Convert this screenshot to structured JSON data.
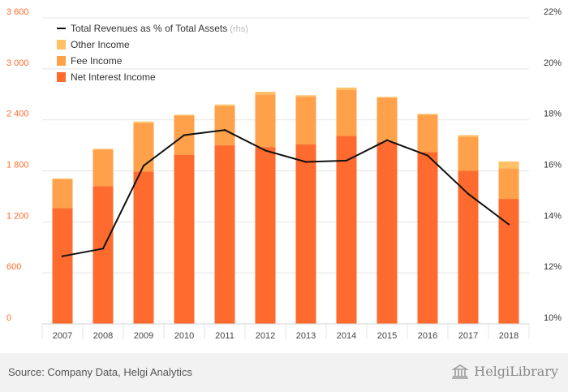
{
  "chart_data": {
    "type": "bar",
    "stacked": true,
    "categories": [
      "2007",
      "2008",
      "2009",
      "2010",
      "2011",
      "2012",
      "2013",
      "2014",
      "2015",
      "2016",
      "2017",
      "2018"
    ],
    "series": [
      {
        "name": "Net Interest Income",
        "color": "#ff6b2e",
        "axis": "left",
        "values": [
          1360,
          1620,
          1790,
          1990,
          2100,
          2080,
          2110,
          2210,
          2140,
          2020,
          1800,
          1470
        ]
      },
      {
        "name": "Fee Income",
        "color": "#ffa04a",
        "axis": "left",
        "values": [
          340,
          430,
          570,
          460,
          460,
          620,
          560,
          540,
          520,
          440,
          400,
          360
        ]
      },
      {
        "name": "Other Income",
        "color": "#ffc066",
        "axis": "left",
        "values": [
          10,
          10,
          20,
          10,
          20,
          30,
          20,
          30,
          10,
          10,
          20,
          80
        ]
      },
      {
        "name": "Total Revenues as % of Total Assets",
        "legend_suffix": "(rhs)",
        "type": "line",
        "color": "#111111",
        "axis": "right",
        "values": [
          12.65,
          12.95,
          16.2,
          17.4,
          17.6,
          16.8,
          16.35,
          16.4,
          17.2,
          16.6,
          15.1,
          13.9
        ]
      }
    ],
    "y_left": {
      "lim": [
        0,
        3600
      ],
      "ticks": [
        "0",
        "600",
        "1 200",
        "1 800",
        "2 400",
        "3 000",
        "3 600"
      ],
      "tick_values": [
        0,
        600,
        1200,
        1800,
        2400,
        3000,
        3600
      ],
      "color": "#ff6b2e"
    },
    "y_right": {
      "lim": [
        10,
        22
      ],
      "ticks": [
        "10%",
        "12%",
        "14%",
        "16%",
        "18%",
        "20%",
        "22%"
      ],
      "tick_values": [
        10,
        12,
        14,
        16,
        18,
        20,
        22
      ]
    },
    "grid": true,
    "legend_position": "top-left",
    "legend_order": [
      3,
      2,
      1,
      0
    ]
  },
  "footer": {
    "source": "Source: Company Data, Helgi Analytics",
    "logo_text": "HelgiLibrary"
  }
}
